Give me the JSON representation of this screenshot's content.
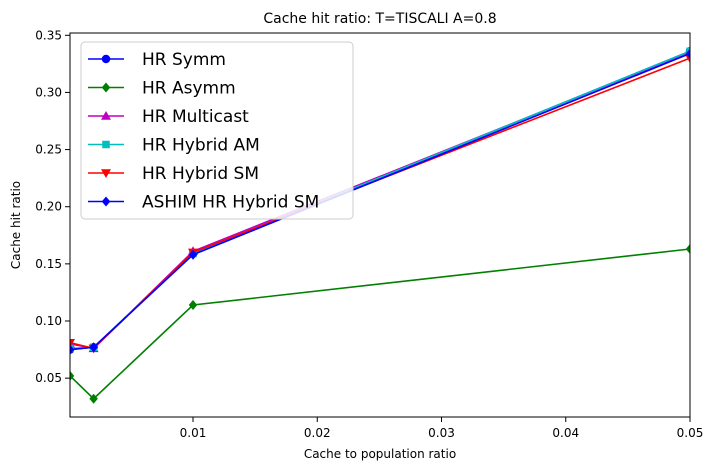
{
  "chart_data": {
    "type": "line",
    "title": "Cache hit ratio: T=TISCALI A=0.8",
    "xlabel": "Cache to population ratio",
    "ylabel": "Cache hit ratio",
    "xlim": [
      0.0001,
      0.05
    ],
    "ylim": [
      0.016,
      0.352
    ],
    "xticks": [
      0.01,
      0.02,
      0.03,
      0.04,
      0.05
    ],
    "xtick_labels": [
      "0.01",
      "0.02",
      "0.03",
      "0.04",
      "0.05"
    ],
    "yticks": [
      0.05,
      0.1,
      0.15,
      0.2,
      0.25,
      0.3,
      0.35
    ],
    "ytick_labels": [
      "0.05",
      "0.10",
      "0.15",
      "0.20",
      "0.25",
      "0.30",
      "0.35"
    ],
    "legend_position": "top-left",
    "grid": false,
    "x": [
      0.0001,
      0.002,
      0.01,
      0.05
    ],
    "series": [
      {
        "name": "HR Symm",
        "color": "#0000ff",
        "marker": "circle",
        "values": [
          0.075,
          0.077,
          0.159,
          0.336
        ]
      },
      {
        "name": "HR Asymm",
        "color": "#008000",
        "marker": "diamond",
        "values": [
          0.052,
          0.032,
          0.114,
          0.163
        ]
      },
      {
        "name": "HR Multicast",
        "color": "#bf00bf",
        "marker": "triangle-up",
        "values": [
          0.08,
          0.076,
          0.161,
          0.335
        ]
      },
      {
        "name": "HR Hybrid AM",
        "color": "#00bfbf",
        "marker": "square",
        "values": [
          0.076,
          0.077,
          0.159,
          0.336
        ]
      },
      {
        "name": "HR Hybrid SM",
        "color": "#ff0000",
        "marker": "triangle-down",
        "values": [
          0.081,
          0.076,
          0.16,
          0.33
        ]
      },
      {
        "name": "ASHIM HR Hybrid SM",
        "color": "#0000ff",
        "marker": "diamond",
        "values": [
          0.075,
          0.077,
          0.158,
          0.334
        ]
      }
    ]
  }
}
